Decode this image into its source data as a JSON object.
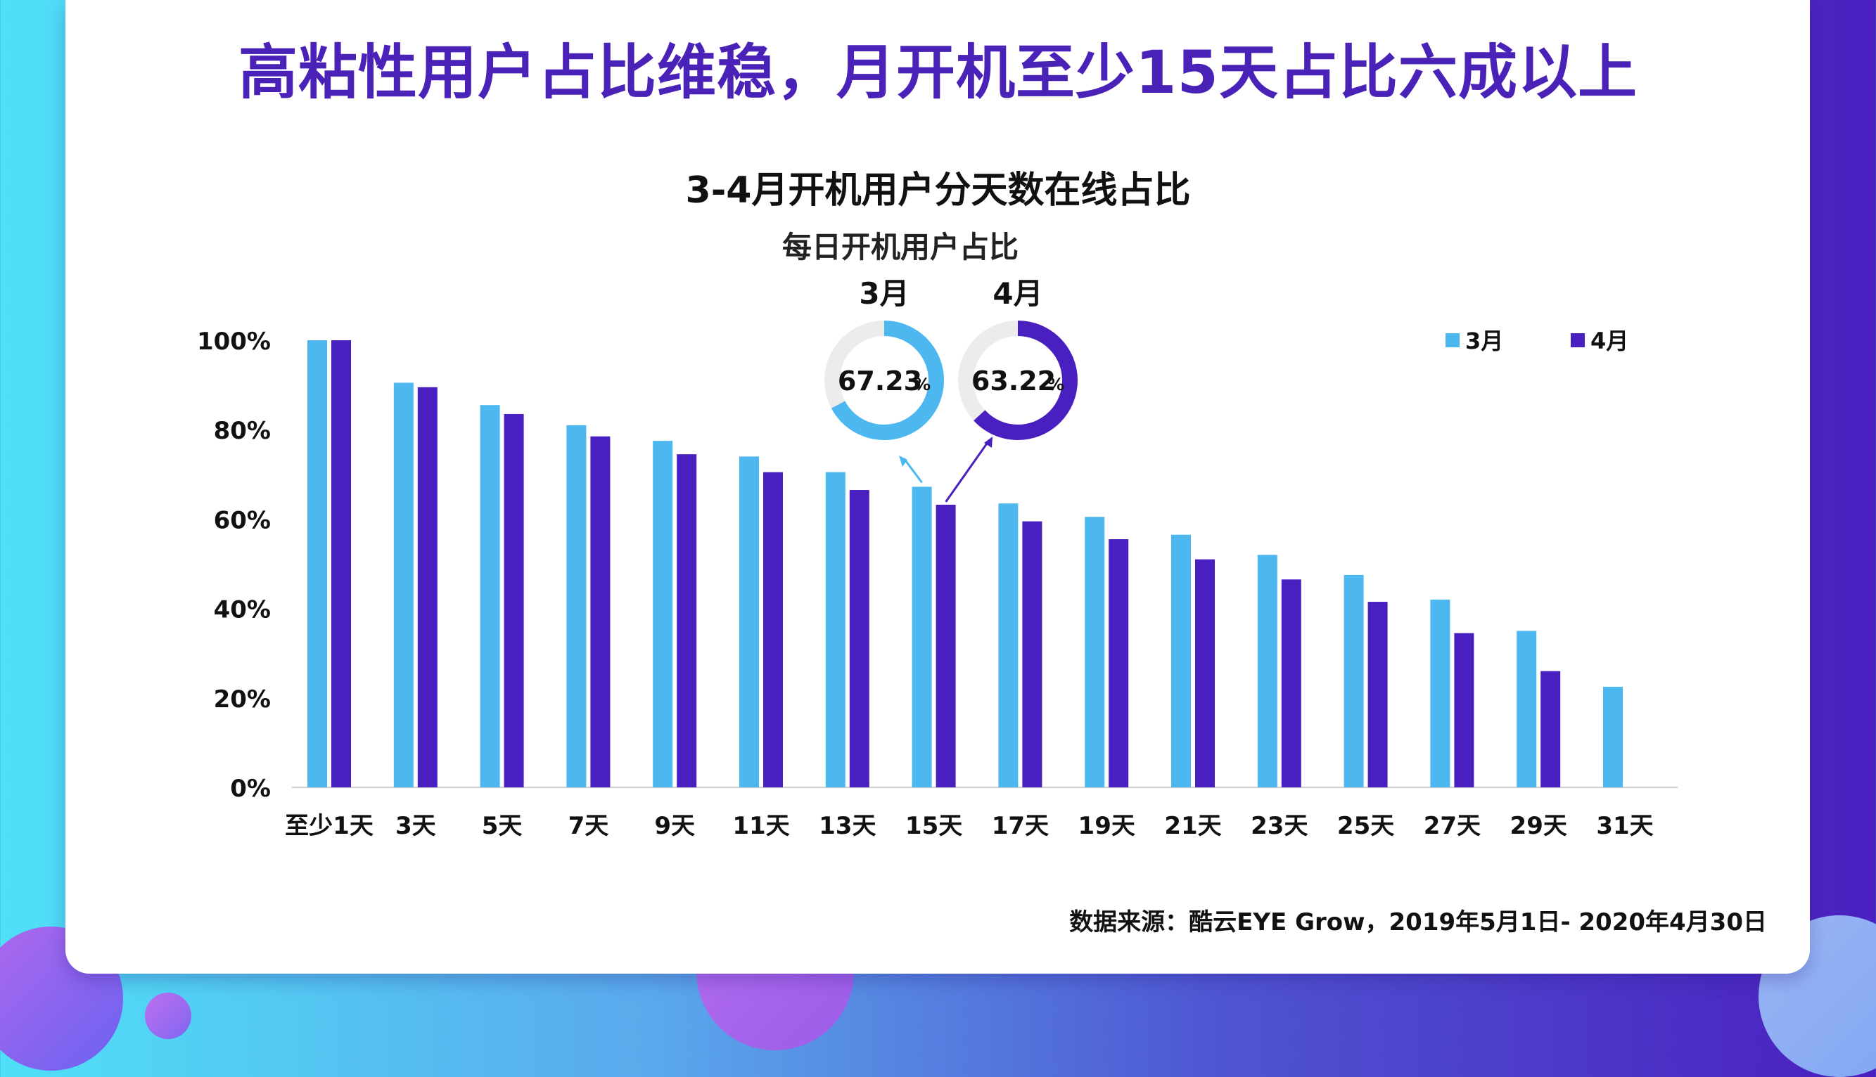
{
  "headline": "高粘性用户占比维稳，月开机至少15天占比六成以上",
  "source": "数据来源：酷云EYE Grow，2019年5月1日- 2020年4月30日",
  "colors": {
    "march": "#4cb8ef",
    "april": "#4a1fbf",
    "title": "#4a22b8",
    "ring_track": "#ececec"
  },
  "chart_data": {
    "type": "bar",
    "title": "3-4月开机用户分天数在线占比",
    "ylim": [
      0,
      100
    ],
    "y_ticks": [
      "0%",
      "20%",
      "40%",
      "60%",
      "80%",
      "100%"
    ],
    "y_tick_values": [
      0,
      20,
      40,
      60,
      80,
      100
    ],
    "categories": [
      "至少1天",
      "3天",
      "5天",
      "7天",
      "9天",
      "11天",
      "13天",
      "15天",
      "17天",
      "19天",
      "21天",
      "23天",
      "25天",
      "27天",
      "29天",
      "31天"
    ],
    "legend_position": "top-right",
    "series": [
      {
        "name": "3月",
        "values": [
          100,
          90.5,
          85.5,
          81,
          77.5,
          74,
          70.5,
          67.23,
          63.5,
          60.5,
          56.5,
          52,
          47.5,
          42,
          35,
          22.5
        ]
      },
      {
        "name": "4月",
        "values": [
          100,
          89.5,
          83.5,
          78.5,
          74.5,
          70.5,
          66.5,
          63.22,
          59.5,
          55.5,
          51,
          46.5,
          41.5,
          34.5,
          26,
          null
        ]
      }
    ],
    "donuts": {
      "title": "每日开机用户占比",
      "items": [
        {
          "label": "3月",
          "value": 67.23,
          "text": "67.23",
          "unit": "%"
        },
        {
          "label": "4月",
          "value": 63.22,
          "text": "63.22",
          "unit": "%"
        }
      ]
    }
  }
}
